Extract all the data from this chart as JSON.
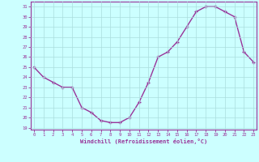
{
  "x": [
    0,
    1,
    2,
    3,
    4,
    5,
    6,
    7,
    8,
    9,
    10,
    11,
    12,
    13,
    14,
    15,
    16,
    17,
    18,
    19,
    20,
    21,
    22,
    23
  ],
  "y": [
    25.0,
    24.0,
    23.5,
    23.0,
    23.0,
    21.0,
    20.5,
    19.7,
    19.5,
    19.5,
    20.0,
    21.5,
    23.5,
    26.0,
    26.5,
    27.5,
    29.0,
    30.5,
    31.0,
    31.0,
    30.5,
    30.0,
    26.5,
    25.5
  ],
  "line_color": "#993399",
  "marker": "+",
  "markersize": 3.5,
  "linewidth": 1.0,
  "bg_color": "#ccffff",
  "grid_color": "#aadddd",
  "xlabel": "Windchill (Refroidissement éolien,°C)",
  "tick_color": "#993399",
  "ylim": [
    18.8,
    31.5
  ],
  "yticks": [
    19,
    20,
    21,
    22,
    23,
    24,
    25,
    26,
    27,
    28,
    29,
    30,
    31
  ],
  "xticks": [
    0,
    1,
    2,
    3,
    4,
    5,
    6,
    7,
    8,
    9,
    10,
    11,
    12,
    13,
    14,
    15,
    16,
    17,
    18,
    19,
    20,
    21,
    22,
    23
  ],
  "spine_color": "#993399",
  "axis_bg": "#ccffff",
  "xlim": [
    -0.3,
    23.3
  ]
}
